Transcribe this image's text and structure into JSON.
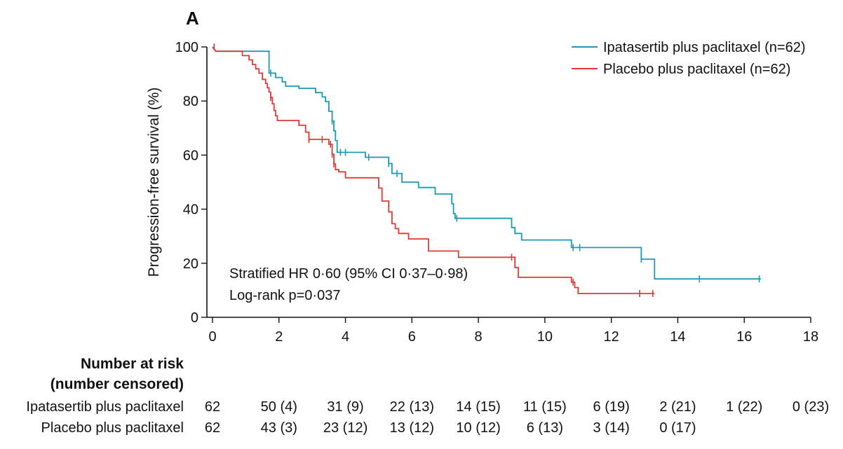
{
  "chart_data": {
    "type": "line",
    "panel_label": "A",
    "xlabel": "",
    "ylabel": "Progression-free survival (%)",
    "xlim": [
      0,
      18
    ],
    "ylim": [
      0,
      100
    ],
    "x_ticks": [
      0,
      2,
      4,
      6,
      8,
      10,
      12,
      14,
      16,
      18
    ],
    "y_ticks": [
      0,
      20,
      40,
      60,
      80,
      100
    ],
    "legend_position": "top-right",
    "annotations": [
      "Stratified HR 0·60 (95% CI 0·37–0·98)",
      "Log-rank p=0·037"
    ],
    "series": [
      {
        "name": "Ipatasertib plus paclitaxel (n=62)",
        "color": "#1a9bb3",
        "steps": [
          [
            0,
            100
          ],
          [
            0.1,
            98.4
          ],
          [
            1.7,
            98.4
          ],
          [
            1.7,
            90.3
          ],
          [
            1.9,
            90.3
          ],
          [
            1.9,
            88.7
          ],
          [
            2.1,
            88.7
          ],
          [
            2.1,
            87.1
          ],
          [
            2.2,
            87.1
          ],
          [
            2.2,
            85.5
          ],
          [
            2.6,
            85.5
          ],
          [
            2.6,
            84.7
          ],
          [
            3.1,
            84.7
          ],
          [
            3.1,
            83.1
          ],
          [
            3.3,
            83.1
          ],
          [
            3.3,
            81.5
          ],
          [
            3.4,
            81.5
          ],
          [
            3.4,
            79.8
          ],
          [
            3.5,
            79.8
          ],
          [
            3.5,
            76.2
          ],
          [
            3.6,
            76.2
          ],
          [
            3.6,
            72.6
          ],
          [
            3.65,
            72.6
          ],
          [
            3.65,
            69.0
          ],
          [
            3.7,
            69.0
          ],
          [
            3.7,
            65.4
          ],
          [
            3.75,
            65.4
          ],
          [
            3.75,
            61.0
          ],
          [
            4.6,
            61.0
          ],
          [
            4.6,
            59.2
          ],
          [
            5.3,
            59.2
          ],
          [
            5.3,
            56.9
          ],
          [
            5.4,
            56.9
          ],
          [
            5.4,
            53.2
          ],
          [
            5.7,
            53.2
          ],
          [
            5.7,
            50.0
          ],
          [
            6.2,
            50.0
          ],
          [
            6.2,
            48.0
          ],
          [
            6.7,
            48.0
          ],
          [
            6.7,
            45.6
          ],
          [
            7.2,
            45.6
          ],
          [
            7.2,
            42.0
          ],
          [
            7.25,
            42.0
          ],
          [
            7.25,
            38.4
          ],
          [
            7.3,
            38.4
          ],
          [
            7.3,
            36.6
          ],
          [
            9.0,
            36.6
          ],
          [
            9.0,
            33.2
          ],
          [
            9.1,
            33.2
          ],
          [
            9.1,
            31.0
          ],
          [
            9.3,
            31.0
          ],
          [
            9.3,
            28.6
          ],
          [
            10.8,
            28.6
          ],
          [
            10.8,
            25.8
          ],
          [
            11.2,
            25.8
          ],
          [
            11.2,
            25.8
          ],
          [
            12.9,
            25.8
          ],
          [
            12.9,
            21.5
          ],
          [
            13.3,
            21.5
          ],
          [
            13.3,
            14.2
          ],
          [
            16.5,
            14.2
          ]
        ],
        "censor_x": [
          0.05,
          1.75,
          3.6,
          3.85,
          4.0,
          4.7,
          5.3,
          5.55,
          7.35,
          10.85,
          11.05,
          12.9,
          14.65,
          16.45
        ]
      },
      {
        "name": "Placebo plus paclitaxel (n=62)",
        "color": "#e03a36",
        "steps": [
          [
            0,
            100
          ],
          [
            0.1,
            98.4
          ],
          [
            0.9,
            98.4
          ],
          [
            0.9,
            96.8
          ],
          [
            1.1,
            96.8
          ],
          [
            1.1,
            95.2
          ],
          [
            1.2,
            95.2
          ],
          [
            1.2,
            93.5
          ],
          [
            1.3,
            93.5
          ],
          [
            1.3,
            91.9
          ],
          [
            1.4,
            91.9
          ],
          [
            1.4,
            90.3
          ],
          [
            1.5,
            90.3
          ],
          [
            1.5,
            88.0
          ],
          [
            1.6,
            88.0
          ],
          [
            1.6,
            86.5
          ],
          [
            1.65,
            86.5
          ],
          [
            1.65,
            84.9
          ],
          [
            1.7,
            84.9
          ],
          [
            1.7,
            83.3
          ],
          [
            1.75,
            83.3
          ],
          [
            1.75,
            81.3
          ],
          [
            1.8,
            81.3
          ],
          [
            1.8,
            79.0
          ],
          [
            1.85,
            79.0
          ],
          [
            1.85,
            76.5
          ],
          [
            1.9,
            76.5
          ],
          [
            1.9,
            74.5
          ],
          [
            1.95,
            74.5
          ],
          [
            1.95,
            72.8
          ],
          [
            2.6,
            72.8
          ],
          [
            2.6,
            71.0
          ],
          [
            2.8,
            71.0
          ],
          [
            2.8,
            68.5
          ],
          [
            2.9,
            68.5
          ],
          [
            2.9,
            65.8
          ],
          [
            3.5,
            65.8
          ],
          [
            3.5,
            64.0
          ],
          [
            3.6,
            64.0
          ],
          [
            3.6,
            60.3
          ],
          [
            3.65,
            60.3
          ],
          [
            3.65,
            56.7
          ],
          [
            3.7,
            56.7
          ],
          [
            3.7,
            54.6
          ],
          [
            3.8,
            54.6
          ],
          [
            3.8,
            53.8
          ],
          [
            4.0,
            53.8
          ],
          [
            4.0,
            51.6
          ],
          [
            5.0,
            51.6
          ],
          [
            5.0,
            47.8
          ],
          [
            5.1,
            47.8
          ],
          [
            5.1,
            43.0
          ],
          [
            5.3,
            43.0
          ],
          [
            5.3,
            39.0
          ],
          [
            5.4,
            39.0
          ],
          [
            5.4,
            34.6
          ],
          [
            5.5,
            34.6
          ],
          [
            5.5,
            32.8
          ],
          [
            5.6,
            32.8
          ],
          [
            5.6,
            31.0
          ],
          [
            5.9,
            31.0
          ],
          [
            5.9,
            29.0
          ],
          [
            6.5,
            29.0
          ],
          [
            6.5,
            24.5
          ],
          [
            7.4,
            24.5
          ],
          [
            7.4,
            22.2
          ],
          [
            9.1,
            22.2
          ],
          [
            9.1,
            18.4
          ],
          [
            9.2,
            18.4
          ],
          [
            9.2,
            14.8
          ],
          [
            10.8,
            14.8
          ],
          [
            10.8,
            13.0
          ],
          [
            10.9,
            13.0
          ],
          [
            10.9,
            11.0
          ],
          [
            11.0,
            11.0
          ],
          [
            11.0,
            8.8
          ],
          [
            13.3,
            8.8
          ]
        ],
        "censor_x": [
          0.05,
          1.75,
          2.9,
          3.3,
          3.55,
          3.6,
          3.65,
          9.0,
          10.85,
          12.85,
          13.25
        ]
      }
    ],
    "risk_table": {
      "title_line1": "Number at risk",
      "title_line2": "(number censored)",
      "rows": [
        {
          "label": "Ipatasertib plus paclitaxel",
          "values": [
            "62",
            "50 (4)",
            "31 (9)",
            "22 (13)",
            "14 (15)",
            "11 (15)",
            "6 (19)",
            "2 (21)",
            "1 (22)",
            "0 (23)"
          ]
        },
        {
          "label": "Placebo plus paclitaxel",
          "values": [
            "62",
            "43 (3)",
            "23 (12)",
            "13 (12)",
            "10 (12)",
            "6 (13)",
            "3 (14)",
            "0 (17)"
          ]
        }
      ]
    }
  }
}
